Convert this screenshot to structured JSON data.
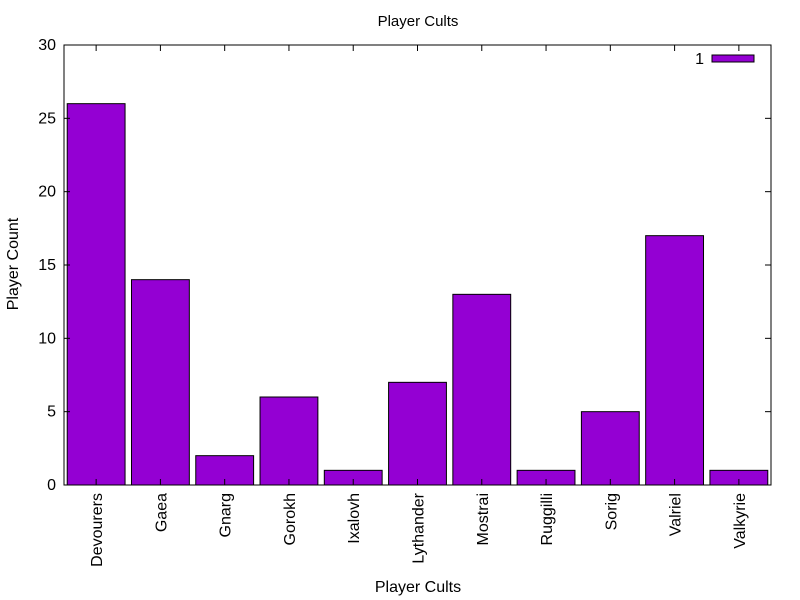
{
  "chart_data": {
    "type": "bar",
    "title": "Player Cults",
    "xlabel": "Player Cults",
    "ylabel": "Player Count",
    "categories": [
      "Devourers",
      "Gaea",
      "Gnarg",
      "Gorokh",
      "Ixalovh",
      "Lythander",
      "Mostrai",
      "Ruggilli",
      "Sorig",
      "Valriel",
      "Valkyrie"
    ],
    "series": [
      {
        "name": "1",
        "values": [
          26,
          14,
          2,
          6,
          1,
          7,
          13,
          1,
          5,
          17,
          1
        ],
        "color": "#9400d3"
      }
    ],
    "ylim": [
      0,
      30
    ],
    "yticks": [
      0,
      5,
      10,
      15,
      20,
      25,
      30
    ],
    "grid": false,
    "legend_position": "top-right"
  }
}
